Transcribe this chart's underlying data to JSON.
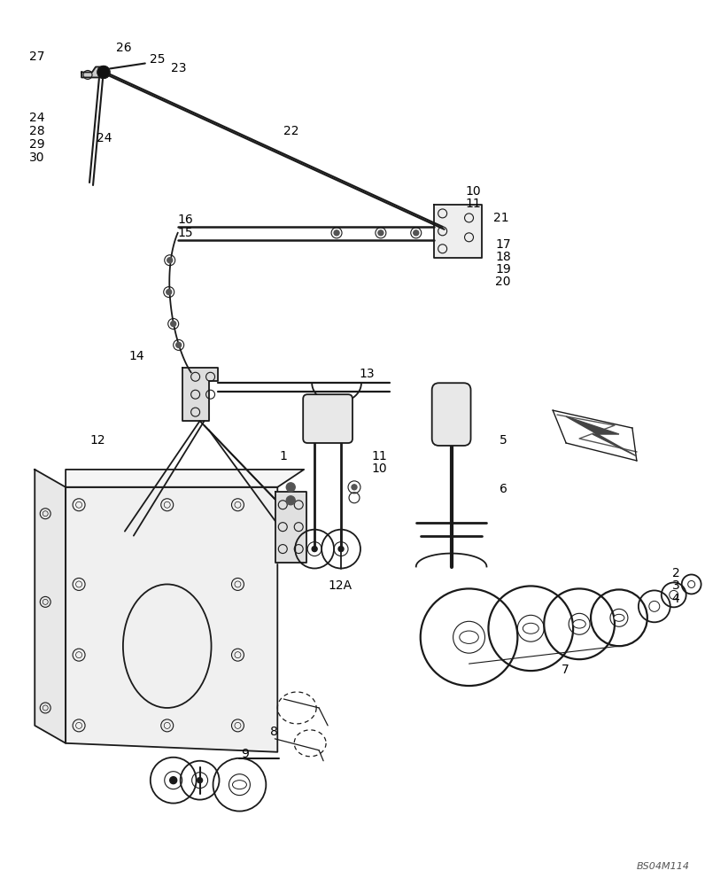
{
  "bg_color": "#ffffff",
  "fig_width": 7.96,
  "fig_height": 10.0,
  "watermark": "BS04M114",
  "line_color": "#1a1a1a",
  "lw_main": 1.3,
  "lw_thick": 2.0,
  "lw_cable": 1.5
}
